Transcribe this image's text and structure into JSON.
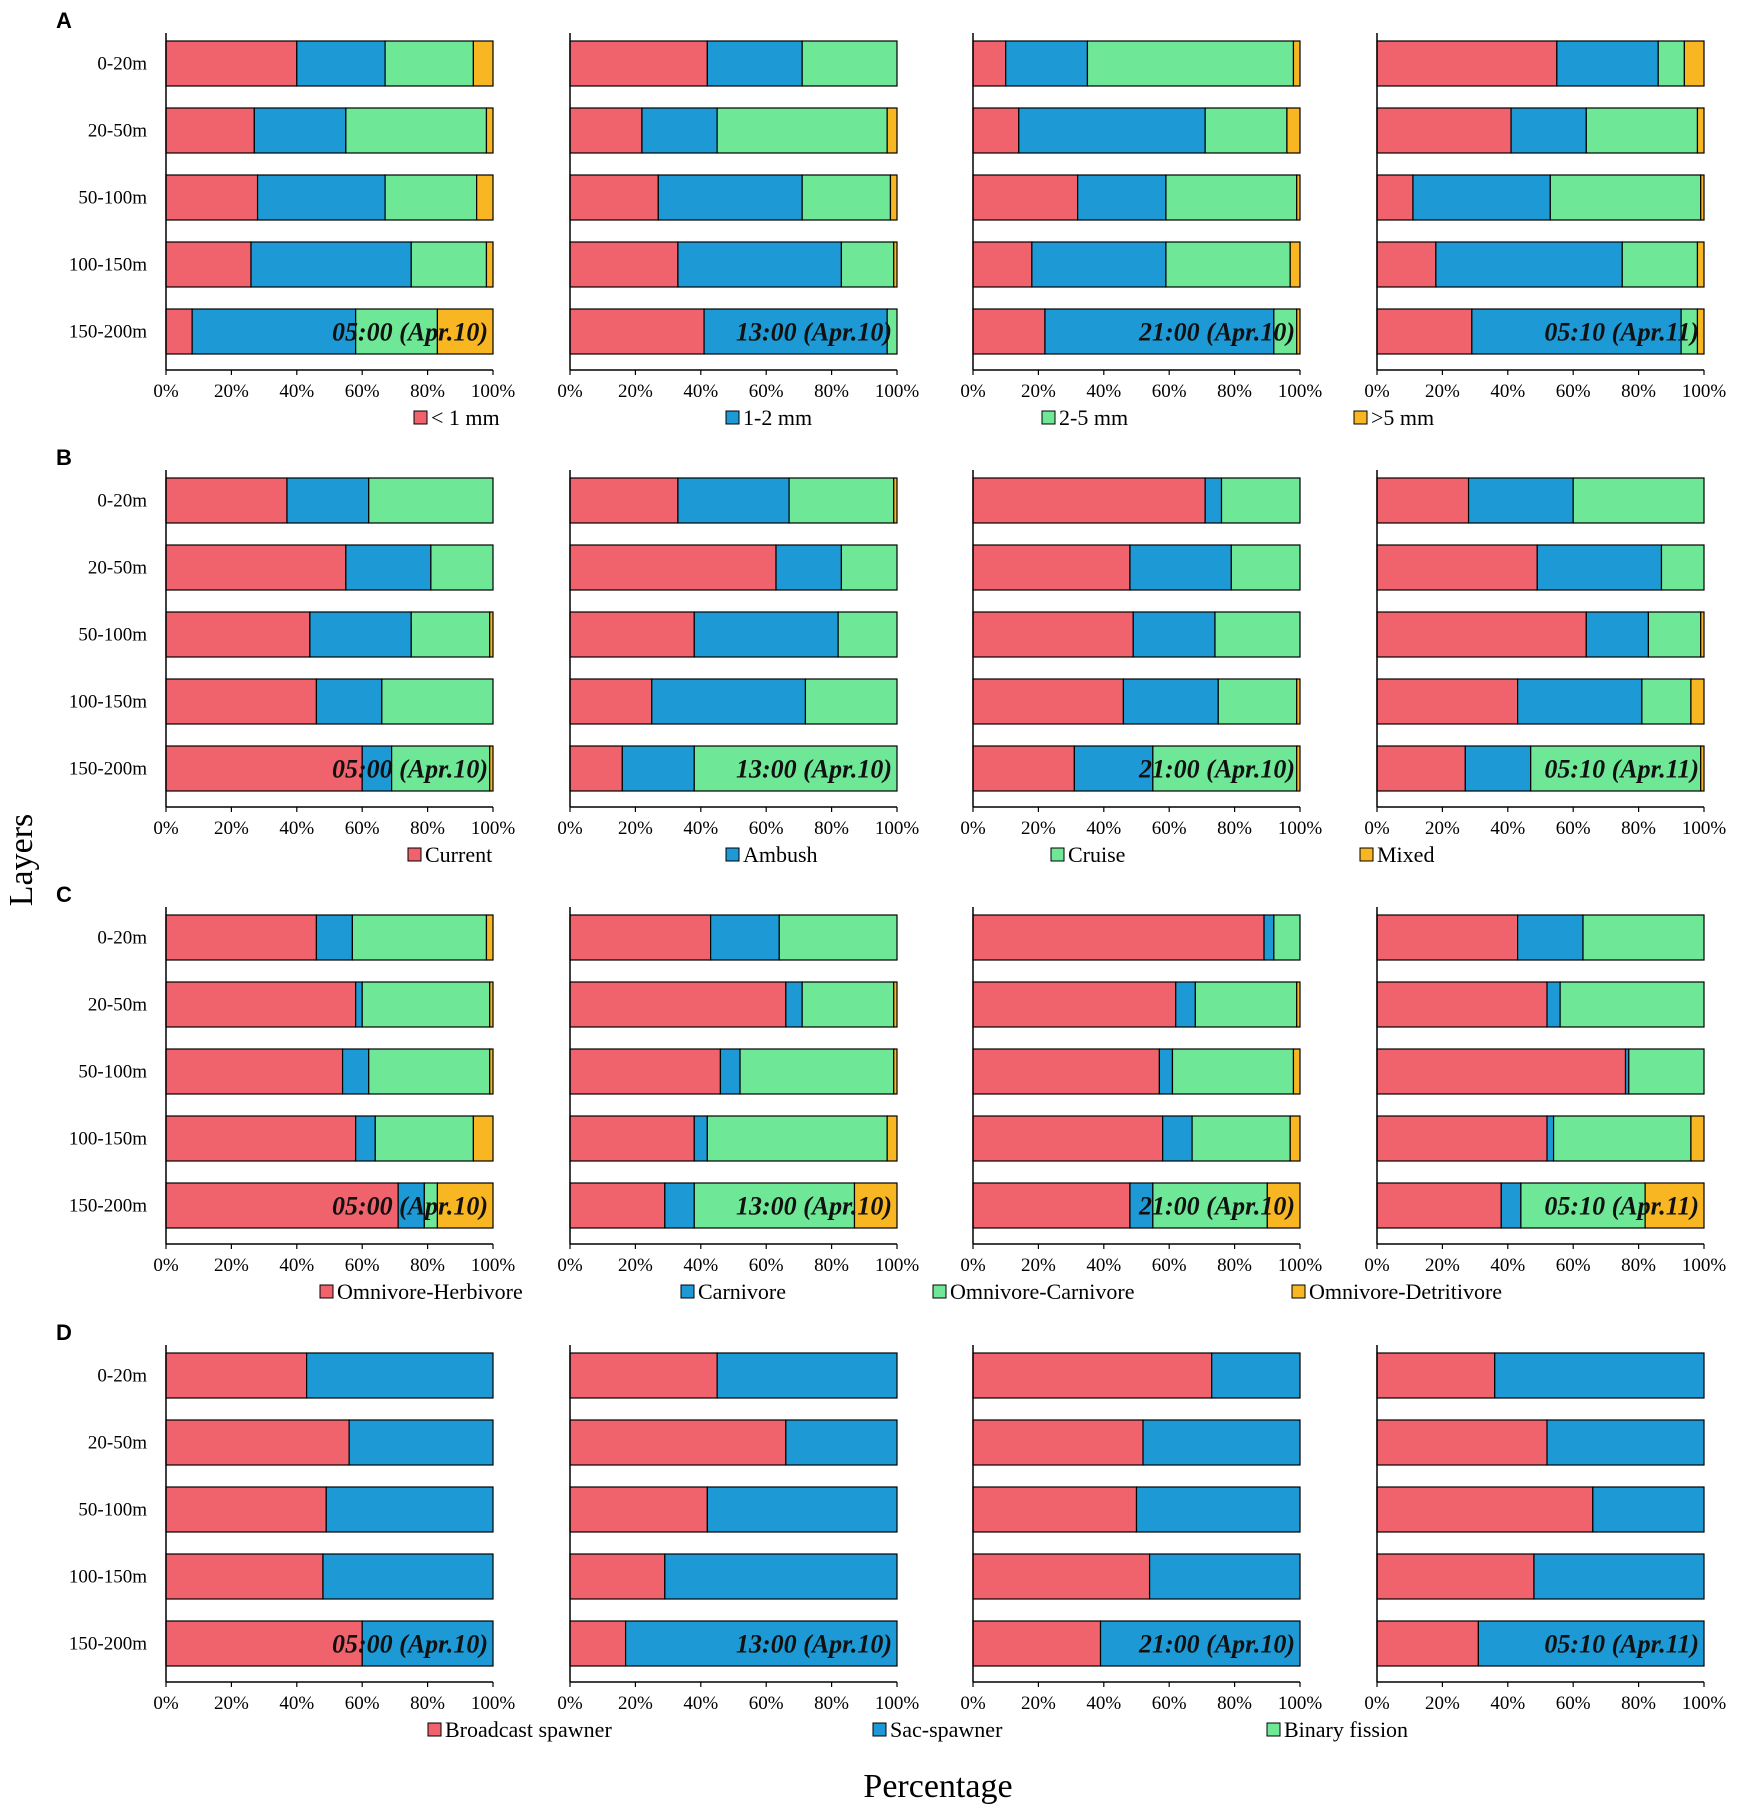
{
  "figure": {
    "ylabel": "Layers",
    "xlabel": "Percentage",
    "colors": {
      "red": "#f0626c",
      "blue": "#1d9ad6",
      "green": "#6ee897",
      "yellow": "#f8b622",
      "axis": "#000000"
    }
  },
  "chart_data": [
    {
      "type": "bar",
      "panel": "A",
      "orientation": "horizontal-stacked",
      "categories": [
        "0-20m",
        "20-50m",
        "50-100m",
        "100-150m",
        "150-200m"
      ],
      "xlim": [
        0,
        100
      ],
      "xticks": [
        "0%",
        "20%",
        "40%",
        "60%",
        "80%",
        "100%"
      ],
      "legend": [
        {
          "name": "< 1 mm",
          "color": "red"
        },
        {
          "name": "1-2 mm",
          "color": "blue"
        },
        {
          "name": "2-5 mm",
          "color": "green"
        },
        {
          "name": ">5 mm",
          "color": "yellow"
        }
      ],
      "subplots": [
        {
          "label": "05:00 (Apr.10)",
          "rows": [
            [
              40,
              27,
              27,
              6
            ],
            [
              27,
              28,
              43,
              2
            ],
            [
              28,
              39,
              28,
              5
            ],
            [
              26,
              49,
              23,
              2
            ],
            [
              8,
              50,
              25,
              17
            ]
          ]
        },
        {
          "label": "13:00 (Apr.10)",
          "rows": [
            [
              42,
              29,
              29,
              0
            ],
            [
              22,
              23,
              52,
              3
            ],
            [
              27,
              44,
              27,
              2
            ],
            [
              33,
              50,
              16,
              1
            ],
            [
              41,
              56,
              3,
              0
            ]
          ]
        },
        {
          "label": "21:00 (Apr.10)",
          "rows": [
            [
              10,
              25,
              63,
              2
            ],
            [
              14,
              57,
              25,
              4
            ],
            [
              32,
              27,
              40,
              1
            ],
            [
              18,
              41,
              38,
              3
            ],
            [
              22,
              70,
              7,
              1
            ]
          ]
        },
        {
          "label": "05:10 (Apr.11)",
          "rows": [
            [
              55,
              31,
              8,
              6
            ],
            [
              41,
              23,
              34,
              2
            ],
            [
              11,
              42,
              46,
              1
            ],
            [
              18,
              57,
              23,
              2
            ],
            [
              29,
              64,
              5,
              2
            ]
          ]
        }
      ]
    },
    {
      "type": "bar",
      "panel": "B",
      "orientation": "horizontal-stacked",
      "categories": [
        "0-20m",
        "20-50m",
        "50-100m",
        "100-150m",
        "150-200m"
      ],
      "xlim": [
        0,
        100
      ],
      "xticks": [
        "0%",
        "20%",
        "40%",
        "60%",
        "80%",
        "100%"
      ],
      "legend": [
        {
          "name": "Current",
          "color": "red"
        },
        {
          "name": "Ambush",
          "color": "blue"
        },
        {
          "name": "Cruise",
          "color": "green"
        },
        {
          "name": "Mixed",
          "color": "yellow"
        }
      ],
      "subplots": [
        {
          "label": "05:00 (Apr.10)",
          "rows": [
            [
              37,
              25,
              38,
              0
            ],
            [
              55,
              26,
              19,
              0
            ],
            [
              44,
              31,
              24,
              1
            ],
            [
              46,
              20,
              34,
              0
            ],
            [
              60,
              9,
              30,
              1
            ]
          ]
        },
        {
          "label": "13:00 (Apr.10)",
          "rows": [
            [
              33,
              34,
              32,
              1
            ],
            [
              63,
              20,
              17,
              0
            ],
            [
              38,
              44,
              18,
              0
            ],
            [
              25,
              47,
              28,
              0
            ],
            [
              16,
              22,
              62,
              0
            ]
          ]
        },
        {
          "label": "21:00 (Apr.10)",
          "rows": [
            [
              71,
              5,
              24,
              0
            ],
            [
              48,
              31,
              21,
              0
            ],
            [
              49,
              25,
              26,
              0
            ],
            [
              46,
              29,
              24,
              1
            ],
            [
              31,
              24,
              44,
              1
            ]
          ]
        },
        {
          "label": "05:10 (Apr.11)",
          "rows": [
            [
              28,
              32,
              40,
              0
            ],
            [
              49,
              38,
              13,
              0
            ],
            [
              64,
              19,
              16,
              1
            ],
            [
              43,
              38,
              15,
              4
            ],
            [
              27,
              20,
              52,
              1
            ]
          ]
        }
      ]
    },
    {
      "type": "bar",
      "panel": "C",
      "orientation": "horizontal-stacked",
      "categories": [
        "0-20m",
        "20-50m",
        "50-100m",
        "100-150m",
        "150-200m"
      ],
      "xlim": [
        0,
        100
      ],
      "xticks": [
        "0%",
        "20%",
        "40%",
        "60%",
        "80%",
        "100%"
      ],
      "legend": [
        {
          "name": "Omnivore-Herbivore",
          "color": "red"
        },
        {
          "name": "Carnivore",
          "color": "blue"
        },
        {
          "name": "Omnivore-Carnivore",
          "color": "green"
        },
        {
          "name": "Omnivore-Detritivore",
          "color": "yellow"
        }
      ],
      "subplots": [
        {
          "label": "05:00 (Apr.10)",
          "rows": [
            [
              46,
              11,
              41,
              2
            ],
            [
              58,
              2,
              39,
              1
            ],
            [
              54,
              8,
              37,
              1
            ],
            [
              58,
              6,
              30,
              6
            ],
            [
              71,
              8,
              4,
              17
            ]
          ]
        },
        {
          "label": "13:00 (Apr.10)",
          "rows": [
            [
              43,
              21,
              36,
              0
            ],
            [
              66,
              5,
              28,
              1
            ],
            [
              46,
              6,
              47,
              1
            ],
            [
              38,
              4,
              55,
              3
            ],
            [
              29,
              9,
              49,
              13
            ]
          ]
        },
        {
          "label": "21:00 (Apr.10)",
          "rows": [
            [
              89,
              3,
              8,
              0
            ],
            [
              62,
              6,
              31,
              1
            ],
            [
              57,
              4,
              37,
              2
            ],
            [
              58,
              9,
              30,
              3
            ],
            [
              48,
              7,
              35,
              10
            ]
          ]
        },
        {
          "label": "05:10 (Apr.11)",
          "rows": [
            [
              43,
              20,
              37,
              0
            ],
            [
              52,
              4,
              44,
              0
            ],
            [
              76,
              1,
              23,
              0
            ],
            [
              52,
              2,
              42,
              4
            ],
            [
              38,
              6,
              38,
              18
            ]
          ]
        }
      ]
    },
    {
      "type": "bar",
      "panel": "D",
      "orientation": "horizontal-stacked",
      "categories": [
        "0-20m",
        "20-50m",
        "50-100m",
        "100-150m",
        "150-200m"
      ],
      "xlim": [
        0,
        100
      ],
      "xticks": [
        "0%",
        "20%",
        "40%",
        "60%",
        "80%",
        "100%"
      ],
      "legend": [
        {
          "name": "Broadcast spawner",
          "color": "red"
        },
        {
          "name": "Sac-spawner",
          "color": "blue"
        },
        {
          "name": "Binary fission",
          "color": "green"
        }
      ],
      "subplots": [
        {
          "label": "05:00 (Apr.10)",
          "rows": [
            [
              43,
              57,
              0
            ],
            [
              56,
              44,
              0
            ],
            [
              49,
              51,
              0
            ],
            [
              48,
              52,
              0
            ],
            [
              60,
              40,
              0
            ]
          ]
        },
        {
          "label": "13:00 (Apr.10)",
          "rows": [
            [
              45,
              55,
              0
            ],
            [
              66,
              34,
              0
            ],
            [
              42,
              58,
              0
            ],
            [
              29,
              71,
              0
            ],
            [
              17,
              83,
              0
            ]
          ]
        },
        {
          "label": "21:00 (Apr.10)",
          "rows": [
            [
              73,
              27,
              0
            ],
            [
              52,
              48,
              0
            ],
            [
              50,
              50,
              0
            ],
            [
              54,
              46,
              0
            ],
            [
              39,
              61,
              0
            ]
          ]
        },
        {
          "label": "05:10 (Apr.11)",
          "rows": [
            [
              36,
              64,
              0
            ],
            [
              52,
              48,
              0
            ],
            [
              66,
              34,
              0
            ],
            [
              48,
              52,
              0
            ],
            [
              31,
              69,
              0
            ]
          ]
        }
      ]
    }
  ]
}
